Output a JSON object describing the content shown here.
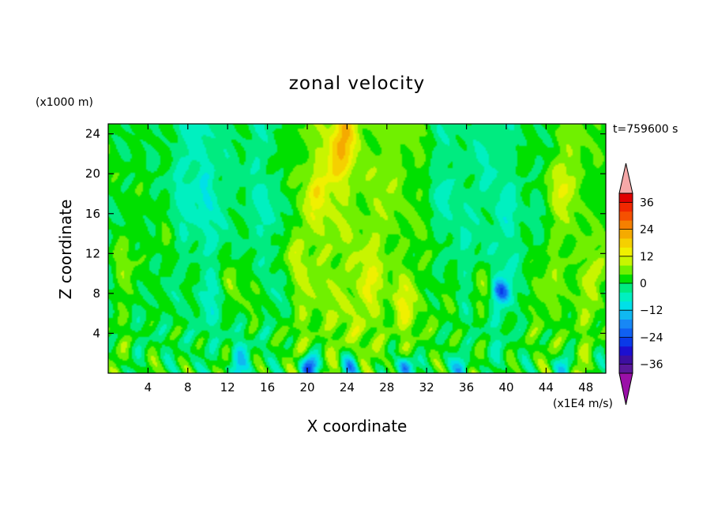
{
  "chart_data": {
    "type": "heatmap",
    "title": "zonal velocity",
    "xlabel": "X coordinate",
    "ylabel": "Z coordinate",
    "x_unit": "(x1E4 m/s)",
    "y_unit": "(x1000 m)",
    "time_label": "t=759600 s",
    "xlim": [
      0,
      50
    ],
    "ylim": [
      0,
      25
    ],
    "x_ticks": [
      4,
      8,
      12,
      16,
      20,
      24,
      28,
      32,
      36,
      40,
      44,
      48
    ],
    "y_ticks": [
      4,
      8,
      12,
      16,
      20,
      24
    ],
    "colorbar": {
      "levels": [
        -40,
        -36,
        -32,
        -28,
        -24,
        -20,
        -16,
        -12,
        -8,
        -4,
        0,
        4,
        8,
        12,
        16,
        20,
        24,
        28,
        32,
        36,
        40
      ],
      "tick_labels": [
        36,
        24,
        12,
        0,
        -12,
        -24,
        -36
      ],
      "colors": [
        "#5a189a",
        "#3d0fa0",
        "#1c0fd0",
        "#0a3ae8",
        "#1060f2",
        "#1888f5",
        "#10b8f0",
        "#00e0e8",
        "#00f0c0",
        "#00eb80",
        "#00e000",
        "#70f000",
        "#c8f500",
        "#f0f000",
        "#f5d000",
        "#f5aa00",
        "#f58000",
        "#f55000",
        "#f02800",
        "#e00000"
      ],
      "under_color": "#9a10a8",
      "over_color": "#f5a8a8"
    },
    "features": [
      {
        "x": 1.5,
        "z": 11.5,
        "v": 4
      },
      {
        "x": 5.8,
        "z": 12.5,
        "v": 6
      },
      {
        "x": 8.0,
        "z": 9.5,
        "v": 6
      },
      {
        "x": 12.2,
        "z": 10.0,
        "v": 7
      },
      {
        "x": 14.6,
        "z": 8.0,
        "v": 6
      },
      {
        "x": 18.5,
        "z": 12.0,
        "v": 7
      },
      {
        "x": 20.8,
        "z": 18.0,
        "v": 8
      },
      {
        "x": 22.8,
        "z": 21.0,
        "v": 10
      },
      {
        "x": 23.8,
        "z": 24.0,
        "v": 12
      },
      {
        "x": 26.0,
        "z": 9.0,
        "v": 6
      },
      {
        "x": 29.5,
        "z": 7.0,
        "v": 8
      },
      {
        "x": 34.5,
        "z": 7.5,
        "v": 6
      },
      {
        "x": 37.8,
        "z": 9.0,
        "v": 6
      },
      {
        "x": 43.0,
        "z": 8.0,
        "v": 6
      },
      {
        "x": 45.5,
        "z": 19.0,
        "v": 8
      },
      {
        "x": 48.8,
        "z": 10.0,
        "v": 8
      },
      {
        "x": 10.0,
        "z": 18.0,
        "v": -6
      },
      {
        "x": 16.0,
        "z": 16.0,
        "v": -5
      },
      {
        "x": 34.0,
        "z": 18.0,
        "v": -5
      },
      {
        "x": 40.0,
        "z": 16.0,
        "v": -5
      },
      {
        "x": 20.2,
        "z": 0.6,
        "v": -28
      },
      {
        "x": 24.3,
        "z": 0.6,
        "v": -18
      },
      {
        "x": 29.8,
        "z": 0.5,
        "v": -26
      },
      {
        "x": 35.5,
        "z": 0.6,
        "v": -14
      },
      {
        "x": 39.5,
        "z": 8.2,
        "v": -20
      },
      {
        "x": 45.8,
        "z": 0.6,
        "v": -14
      },
      {
        "x": 13.0,
        "z": 0.6,
        "v": -12
      }
    ]
  }
}
